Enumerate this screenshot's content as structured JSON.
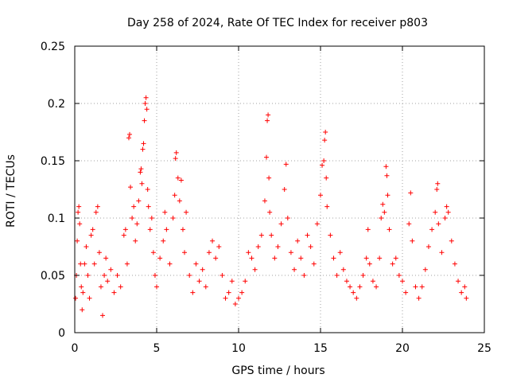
{
  "chart_data": {
    "type": "scatter",
    "title": "Day 258 of 2024, Rate Of TEC Index for receiver p803",
    "xlabel": "GPS time / hours",
    "ylabel": "ROTI / TECUs",
    "xlim": [
      0,
      25
    ],
    "ylim": [
      0,
      0.25
    ],
    "x_ticks": [
      0,
      5,
      10,
      15,
      20,
      25
    ],
    "x_tick_labels": [
      "0",
      "5",
      "10",
      "15",
      "20",
      "25"
    ],
    "y_ticks": [
      0,
      0.05,
      0.1,
      0.15,
      0.2,
      0.25
    ],
    "y_tick_labels": [
      "0",
      "0.05",
      "0.1",
      "0.15",
      "0.2",
      "0.25"
    ],
    "grid": true,
    "marker": "plus",
    "series_color": "#ff0000",
    "series": [
      {
        "name": "ROTI",
        "points": [
          [
            0.05,
            0.03
          ],
          [
            0.1,
            0.05
          ],
          [
            0.15,
            0.08
          ],
          [
            0.2,
            0.105
          ],
          [
            0.25,
            0.11
          ],
          [
            0.3,
            0.095
          ],
          [
            0.35,
            0.06
          ],
          [
            0.4,
            0.04
          ],
          [
            0.45,
            0.02
          ],
          [
            0.5,
            0.035
          ],
          [
            0.6,
            0.06
          ],
          [
            0.7,
            0.075
          ],
          [
            0.8,
            0.05
          ],
          [
            0.9,
            0.03
          ],
          [
            1.0,
            0.085
          ],
          [
            1.1,
            0.09
          ],
          [
            1.2,
            0.06
          ],
          [
            1.3,
            0.105
          ],
          [
            1.4,
            0.11
          ],
          [
            1.5,
            0.07
          ],
          [
            1.6,
            0.04
          ],
          [
            1.7,
            0.015
          ],
          [
            1.8,
            0.05
          ],
          [
            1.9,
            0.065
          ],
          [
            2.0,
            0.045
          ],
          [
            2.2,
            0.055
          ],
          [
            2.4,
            0.035
          ],
          [
            2.6,
            0.05
          ],
          [
            2.8,
            0.04
          ],
          [
            3.0,
            0.085
          ],
          [
            3.1,
            0.09
          ],
          [
            3.2,
            0.06
          ],
          [
            3.3,
            0.17
          ],
          [
            3.35,
            0.173
          ],
          [
            3.4,
            0.127
          ],
          [
            3.5,
            0.1
          ],
          [
            3.6,
            0.11
          ],
          [
            3.7,
            0.08
          ],
          [
            3.8,
            0.095
          ],
          [
            3.9,
            0.115
          ],
          [
            4.0,
            0.14
          ],
          [
            4.05,
            0.143
          ],
          [
            4.1,
            0.13
          ],
          [
            4.15,
            0.16
          ],
          [
            4.2,
            0.165
          ],
          [
            4.25,
            0.185
          ],
          [
            4.3,
            0.2
          ],
          [
            4.35,
            0.205
          ],
          [
            4.4,
            0.195
          ],
          [
            4.45,
            0.125
          ],
          [
            4.5,
            0.11
          ],
          [
            4.6,
            0.09
          ],
          [
            4.7,
            0.1
          ],
          [
            4.8,
            0.07
          ],
          [
            4.9,
            0.05
          ],
          [
            5.0,
            0.04
          ],
          [
            5.2,
            0.065
          ],
          [
            5.4,
            0.08
          ],
          [
            5.5,
            0.105
          ],
          [
            5.6,
            0.09
          ],
          [
            5.8,
            0.06
          ],
          [
            6.0,
            0.1
          ],
          [
            6.1,
            0.12
          ],
          [
            6.15,
            0.152
          ],
          [
            6.2,
            0.157
          ],
          [
            6.3,
            0.135
          ],
          [
            6.4,
            0.115
          ],
          [
            6.5,
            0.133
          ],
          [
            6.6,
            0.09
          ],
          [
            6.7,
            0.07
          ],
          [
            6.8,
            0.105
          ],
          [
            7.0,
            0.05
          ],
          [
            7.2,
            0.035
          ],
          [
            7.4,
            0.06
          ],
          [
            7.6,
            0.045
          ],
          [
            7.8,
            0.055
          ],
          [
            8.0,
            0.04
          ],
          [
            8.2,
            0.07
          ],
          [
            8.4,
            0.08
          ],
          [
            8.6,
            0.065
          ],
          [
            8.8,
            0.075
          ],
          [
            9.0,
            0.05
          ],
          [
            9.2,
            0.03
          ],
          [
            9.4,
            0.035
          ],
          [
            9.6,
            0.045
          ],
          [
            9.8,
            0.025
          ],
          [
            10.0,
            0.03
          ],
          [
            10.2,
            0.035
          ],
          [
            10.4,
            0.045
          ],
          [
            10.6,
            0.07
          ],
          [
            10.8,
            0.065
          ],
          [
            11.0,
            0.055
          ],
          [
            11.2,
            0.075
          ],
          [
            11.4,
            0.085
          ],
          [
            11.6,
            0.115
          ],
          [
            11.7,
            0.153
          ],
          [
            11.75,
            0.185
          ],
          [
            11.8,
            0.19
          ],
          [
            11.85,
            0.135
          ],
          [
            11.9,
            0.105
          ],
          [
            12.0,
            0.085
          ],
          [
            12.2,
            0.065
          ],
          [
            12.4,
            0.075
          ],
          [
            12.6,
            0.095
          ],
          [
            12.8,
            0.125
          ],
          [
            12.9,
            0.147
          ],
          [
            13.0,
            0.1
          ],
          [
            13.2,
            0.07
          ],
          [
            13.4,
            0.055
          ],
          [
            13.6,
            0.08
          ],
          [
            13.8,
            0.065
          ],
          [
            14.0,
            0.05
          ],
          [
            14.2,
            0.085
          ],
          [
            14.4,
            0.075
          ],
          [
            14.6,
            0.06
          ],
          [
            14.8,
            0.095
          ],
          [
            15.0,
            0.12
          ],
          [
            15.1,
            0.146
          ],
          [
            15.2,
            0.15
          ],
          [
            15.25,
            0.168
          ],
          [
            15.3,
            0.175
          ],
          [
            15.35,
            0.135
          ],
          [
            15.4,
            0.11
          ],
          [
            15.6,
            0.085
          ],
          [
            15.8,
            0.065
          ],
          [
            16.0,
            0.05
          ],
          [
            16.2,
            0.07
          ],
          [
            16.4,
            0.055
          ],
          [
            16.6,
            0.045
          ],
          [
            16.8,
            0.04
          ],
          [
            17.0,
            0.035
          ],
          [
            17.2,
            0.03
          ],
          [
            17.4,
            0.04
          ],
          [
            17.6,
            0.05
          ],
          [
            17.8,
            0.065
          ],
          [
            17.9,
            0.09
          ],
          [
            18.0,
            0.06
          ],
          [
            18.2,
            0.045
          ],
          [
            18.4,
            0.04
          ],
          [
            18.6,
            0.065
          ],
          [
            18.7,
            0.1
          ],
          [
            18.8,
            0.112
          ],
          [
            18.9,
            0.105
          ],
          [
            19.0,
            0.145
          ],
          [
            19.05,
            0.137
          ],
          [
            19.1,
            0.12
          ],
          [
            19.2,
            0.09
          ],
          [
            19.4,
            0.06
          ],
          [
            19.6,
            0.065
          ],
          [
            19.8,
            0.05
          ],
          [
            20.0,
            0.045
          ],
          [
            20.2,
            0.035
          ],
          [
            20.4,
            0.095
          ],
          [
            20.5,
            0.122
          ],
          [
            20.6,
            0.08
          ],
          [
            20.8,
            0.04
          ],
          [
            21.0,
            0.03
          ],
          [
            21.2,
            0.04
          ],
          [
            21.4,
            0.055
          ],
          [
            21.6,
            0.075
          ],
          [
            21.8,
            0.09
          ],
          [
            22.0,
            0.105
          ],
          [
            22.1,
            0.125
          ],
          [
            22.15,
            0.13
          ],
          [
            22.2,
            0.095
          ],
          [
            22.4,
            0.07
          ],
          [
            22.6,
            0.1
          ],
          [
            22.7,
            0.11
          ],
          [
            22.8,
            0.105
          ],
          [
            23.0,
            0.08
          ],
          [
            23.2,
            0.06
          ],
          [
            23.4,
            0.045
          ],
          [
            23.6,
            0.035
          ],
          [
            23.8,
            0.04
          ],
          [
            23.9,
            0.03
          ]
        ]
      }
    ]
  }
}
